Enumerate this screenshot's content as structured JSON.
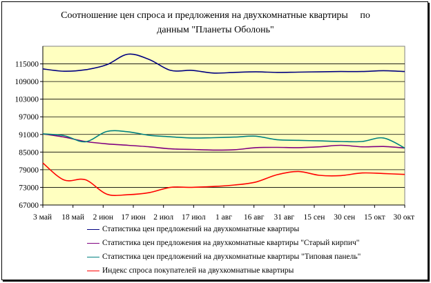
{
  "chart_data": {
    "type": "line",
    "title": [
      "Соотношение цен спроса и предложения на двухкомнатные квартиры     по",
      "данным \"Планеты Оболонь\""
    ],
    "xlabel": "",
    "ylabel": "",
    "ylim": [
      67000,
      121000
    ],
    "yticks": [
      "115000",
      "109000",
      "103000",
      "97000",
      "91000",
      "85000",
      "79000",
      "73000",
      "67000"
    ],
    "ytick_values": [
      115000,
      109000,
      103000,
      97000,
      91000,
      85000,
      79000,
      73000,
      67000
    ],
    "x_labels": [
      "3 май",
      "18 май",
      "2 июн",
      "17 июн",
      "2 июл",
      "17 июл",
      "1 авг",
      "16 авг",
      "31 авг",
      "15 сен",
      "30 сен",
      "15 окт",
      "30 окт"
    ],
    "plot_background": "#ffffc0",
    "grid": "horizontal",
    "legend_position": "bottom",
    "series": [
      {
        "name": "Статистика цен предложений на двухкомнатные квартиры",
        "color": "#000080",
        "values": [
          113300,
          112500,
          113000,
          114700,
          118300,
          116500,
          112800,
          112800,
          111900,
          112100,
          112300,
          112100,
          112200,
          112300,
          112400,
          112400,
          112700,
          112400
        ]
      },
      {
        "name": "Статистика цен предложения на двухкомнатные квартиры \"Старый кирпич\"",
        "color": "#800080",
        "values": [
          91200,
          90100,
          88600,
          87800,
          87300,
          86800,
          86100,
          85900,
          85700,
          85800,
          86500,
          86600,
          86500,
          86800,
          87300,
          86800,
          86900,
          86400
        ]
      },
      {
        "name": "Статистика цен предложений на двухкомнатные квартиры \"Типовая панель\"",
        "color": "#008080",
        "values": [
          91200,
          90600,
          88500,
          92000,
          91900,
          90700,
          90200,
          89800,
          89900,
          90100,
          90400,
          89200,
          89000,
          88800,
          88600,
          88600,
          89800,
          86400
        ]
      },
      {
        "name": "Индекс спроса покупателей на двухкомнатные квартиры",
        "color": "#ff0000",
        "values": [
          81300,
          75500,
          75600,
          70700,
          70500,
          71200,
          73000,
          73000,
          73300,
          73800,
          74800,
          77300,
          78400,
          77100,
          77000,
          77900,
          77700,
          77400
        ]
      }
    ]
  }
}
